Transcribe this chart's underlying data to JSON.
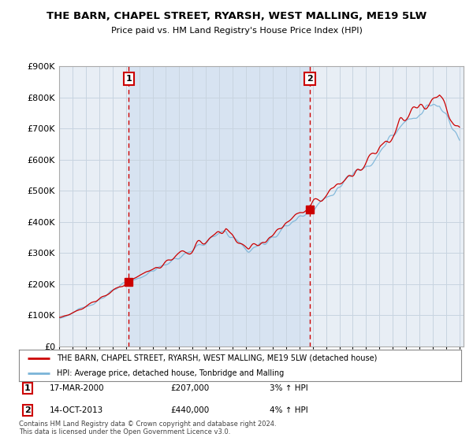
{
  "title": "THE BARN, CHAPEL STREET, RYARSH, WEST MALLING, ME19 5LW",
  "subtitle": "Price paid vs. HM Land Registry's House Price Index (HPI)",
  "legend_line1": "THE BARN, CHAPEL STREET, RYARSH, WEST MALLING, ME19 5LW (detached house)",
  "legend_line2": "HPI: Average price, detached house, Tonbridge and Malling",
  "footer": "Contains HM Land Registry data © Crown copyright and database right 2024.\nThis data is licensed under the Open Government Licence v3.0.",
  "transaction1_date": "17-MAR-2000",
  "transaction1_price": "£207,000",
  "transaction1_hpi": "3% ↑ HPI",
  "transaction1_year": 2000.21,
  "transaction1_value": 207000,
  "transaction2_date": "14-OCT-2013",
  "transaction2_price": "£440,000",
  "transaction2_hpi": "4% ↑ HPI",
  "transaction2_year": 2013.79,
  "transaction2_value": 440000,
  "ylim": [
    0,
    900000
  ],
  "yticks": [
    0,
    100000,
    200000,
    300000,
    400000,
    500000,
    600000,
    700000,
    800000,
    900000
  ],
  "xlim_start": 1995,
  "xlim_end": 2025.3,
  "background_color": "#ffffff",
  "chart_bg_color": "#e8eef5",
  "shade_color": "#d0dff0",
  "grid_color": "#c8d4e0",
  "red_color": "#cc0000",
  "hpi_color": "#7ab4d8",
  "shade_between_alpha": 0.5
}
